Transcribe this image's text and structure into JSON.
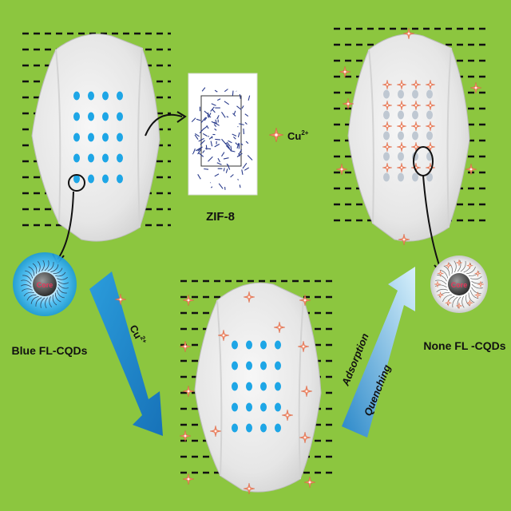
{
  "labels": {
    "zif8": "ZIF-8",
    "cu_ion": "Cu",
    "cu_charge": "2+",
    "blue_cqds": "Blue FL-CQDs",
    "none_cqds": "None FL -CQDs",
    "core": "Core",
    "arrow_cu": "Cu",
    "arrow_cu_charge": "2+",
    "adsorption": "Adsorption",
    "quenching": "Quenching"
  },
  "colors": {
    "background": "#8cc63f",
    "crystal": "#ececec",
    "dot_blue": "#1ea6e6",
    "cu_star": "#f08a6a",
    "dash": "#111111",
    "arrow_blue": "#1a8fd0",
    "arrow_light": "#9ed3f0",
    "glow_blue": "#2aa8ec",
    "core_red": "#e7375b",
    "framework": "#2a3c8c"
  },
  "icons": [
    "crystal-icon",
    "cu-ion-star-icon",
    "framework-structure-icon",
    "cqd-core-icon",
    "magnifier-circle-icon",
    "process-arrow-icon"
  ]
}
